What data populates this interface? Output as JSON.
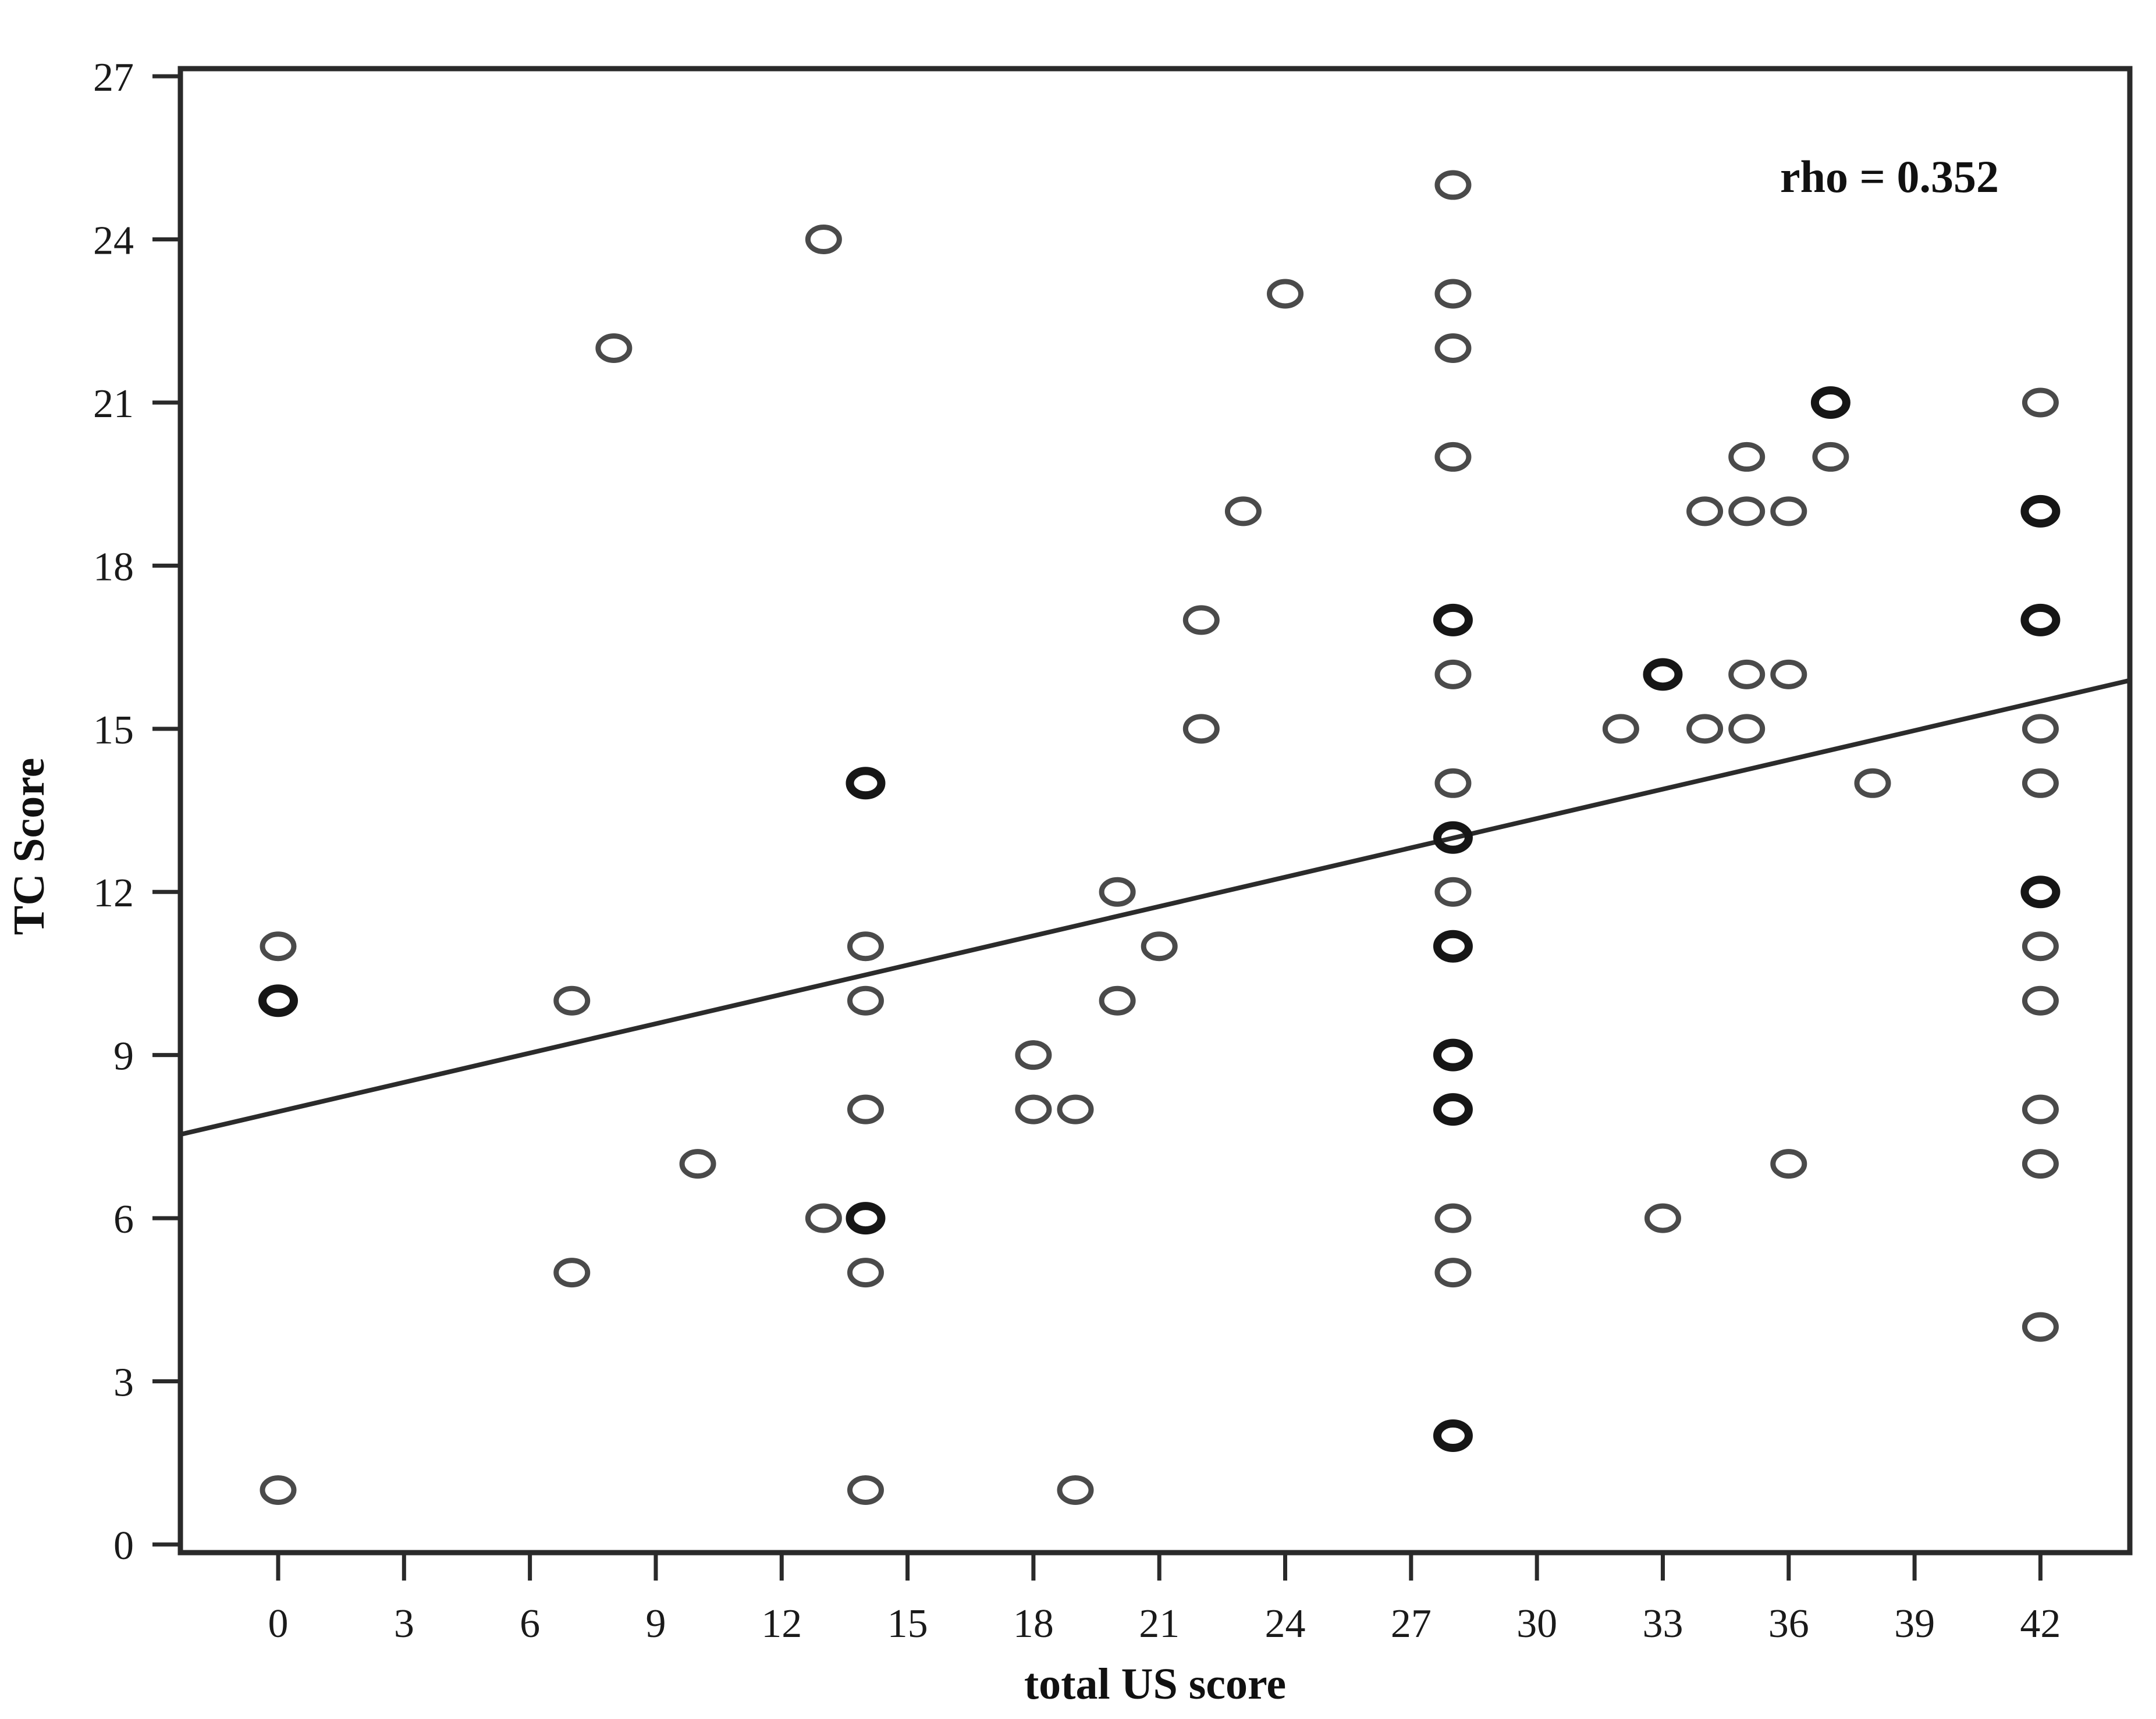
{
  "figure": {
    "background": "#ffffff",
    "frame_color": "#2a2a2a",
    "annotation": {
      "rho_label": "rho = 0.352"
    }
  },
  "chart_data": {
    "type": "scatter",
    "title": "",
    "xlabel": "total US score",
    "ylabel": "TC Score",
    "xlim": [
      -2.33,
      44.13
    ],
    "ylim": [
      -0.15,
      27.14
    ],
    "x_ticks": [
      0,
      3,
      6,
      9,
      12,
      15,
      18,
      21,
      24,
      27,
      30,
      33,
      36,
      39,
      42
    ],
    "y_ticks": [
      0,
      3,
      6,
      9,
      12,
      15,
      18,
      21,
      24,
      27
    ],
    "grid": false,
    "legend": "none",
    "annotation": "rho = 0.352",
    "rho": 0.352,
    "marker": {
      "shape": "open-circle",
      "color": "#4a4a4a",
      "bold_color": "#161616"
    },
    "regression_line": {
      "x1": -2.33,
      "y1": 7.54,
      "x2": 44.13,
      "y2": 15.89,
      "color": "#2b2b2b"
    },
    "points": [
      {
        "x": 0,
        "y": 11,
        "n": 1
      },
      {
        "x": 0,
        "y": 10,
        "n": 2
      },
      {
        "x": 0,
        "y": 1,
        "n": 1
      },
      {
        "x": 7,
        "y": 10,
        "n": 1
      },
      {
        "x": 7,
        "y": 5,
        "n": 1
      },
      {
        "x": 8,
        "y": 22,
        "n": 1
      },
      {
        "x": 10,
        "y": 7,
        "n": 1
      },
      {
        "x": 13,
        "y": 24,
        "n": 1
      },
      {
        "x": 13,
        "y": 6,
        "n": 1
      },
      {
        "x": 14,
        "y": 14,
        "n": 2
      },
      {
        "x": 14,
        "y": 11,
        "n": 1
      },
      {
        "x": 14,
        "y": 10,
        "n": 1
      },
      {
        "x": 14,
        "y": 8,
        "n": 1
      },
      {
        "x": 14,
        "y": 6,
        "n": 2
      },
      {
        "x": 14,
        "y": 5,
        "n": 1
      },
      {
        "x": 14,
        "y": 1,
        "n": 1
      },
      {
        "x": 18,
        "y": 9,
        "n": 1
      },
      {
        "x": 18,
        "y": 8,
        "n": 1
      },
      {
        "x": 19,
        "y": 8,
        "n": 1
      },
      {
        "x": 19,
        "y": 1,
        "n": 1
      },
      {
        "x": 20,
        "y": 12,
        "n": 1
      },
      {
        "x": 20,
        "y": 10,
        "n": 1
      },
      {
        "x": 21,
        "y": 11,
        "n": 1
      },
      {
        "x": 22,
        "y": 17,
        "n": 1
      },
      {
        "x": 22,
        "y": 15,
        "n": 1
      },
      {
        "x": 23,
        "y": 19,
        "n": 1
      },
      {
        "x": 24,
        "y": 23,
        "n": 1
      },
      {
        "x": 28,
        "y": 25,
        "n": 1
      },
      {
        "x": 28,
        "y": 23,
        "n": 1
      },
      {
        "x": 28,
        "y": 22,
        "n": 1
      },
      {
        "x": 28,
        "y": 20,
        "n": 1
      },
      {
        "x": 28,
        "y": 17,
        "n": 2
      },
      {
        "x": 28,
        "y": 16,
        "n": 1
      },
      {
        "x": 28,
        "y": 14,
        "n": 1
      },
      {
        "x": 28,
        "y": 13,
        "n": 2
      },
      {
        "x": 28,
        "y": 12,
        "n": 1
      },
      {
        "x": 28,
        "y": 11,
        "n": 2
      },
      {
        "x": 28,
        "y": 9,
        "n": 2
      },
      {
        "x": 28,
        "y": 8,
        "n": 2
      },
      {
        "x": 28,
        "y": 6,
        "n": 1
      },
      {
        "x": 28,
        "y": 5,
        "n": 1
      },
      {
        "x": 28,
        "y": 2,
        "n": 2
      },
      {
        "x": 32,
        "y": 15,
        "n": 1
      },
      {
        "x": 33,
        "y": 16,
        "n": 2
      },
      {
        "x": 33,
        "y": 6,
        "n": 1
      },
      {
        "x": 34,
        "y": 19,
        "n": 1
      },
      {
        "x": 34,
        "y": 15,
        "n": 1
      },
      {
        "x": 35,
        "y": 20,
        "n": 1
      },
      {
        "x": 35,
        "y": 19,
        "n": 1
      },
      {
        "x": 35,
        "y": 16,
        "n": 1
      },
      {
        "x": 35,
        "y": 15,
        "n": 1
      },
      {
        "x": 36,
        "y": 19,
        "n": 1
      },
      {
        "x": 36,
        "y": 16,
        "n": 1
      },
      {
        "x": 36,
        "y": 7,
        "n": 1
      },
      {
        "x": 37,
        "y": 21,
        "n": 2
      },
      {
        "x": 37,
        "y": 20,
        "n": 1
      },
      {
        "x": 38,
        "y": 14,
        "n": 1
      },
      {
        "x": 42,
        "y": 21,
        "n": 1
      },
      {
        "x": 42,
        "y": 19,
        "n": 2
      },
      {
        "x": 42,
        "y": 17,
        "n": 2
      },
      {
        "x": 42,
        "y": 15,
        "n": 1
      },
      {
        "x": 42,
        "y": 14,
        "n": 1
      },
      {
        "x": 42,
        "y": 12,
        "n": 2
      },
      {
        "x": 42,
        "y": 11,
        "n": 1
      },
      {
        "x": 42,
        "y": 10,
        "n": 1
      },
      {
        "x": 42,
        "y": 8,
        "n": 1
      },
      {
        "x": 42,
        "y": 7,
        "n": 1
      },
      {
        "x": 42,
        "y": 4,
        "n": 1
      }
    ]
  }
}
